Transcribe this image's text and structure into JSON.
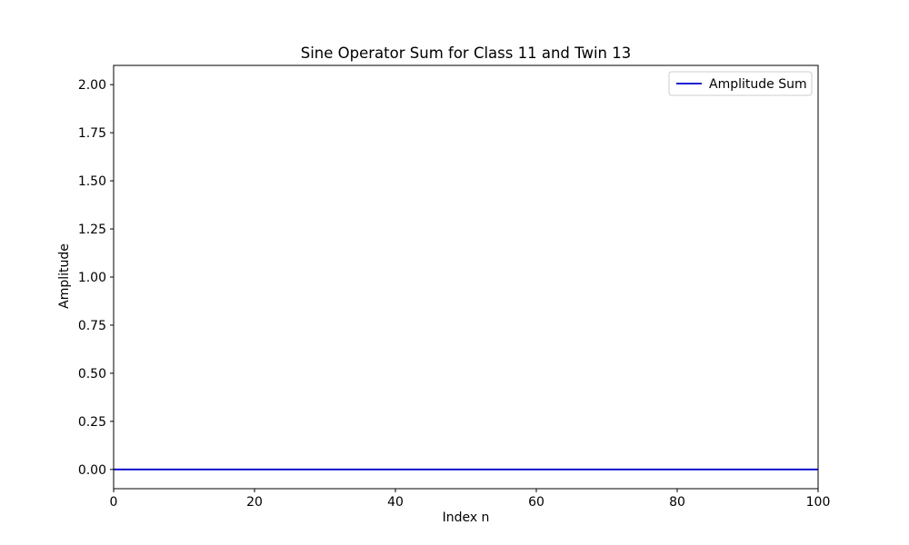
{
  "chart_data": {
    "type": "line",
    "title": "Sine Operator Sum for Class 11 and Twin 13",
    "xlabel": "Index n",
    "ylabel": "Amplitude",
    "xlim": [
      0,
      100
    ],
    "ylim": [
      -0.1,
      2.1
    ],
    "x_ticks": [
      0,
      20,
      40,
      60,
      80,
      100
    ],
    "x_tick_labels": [
      "0",
      "20",
      "40",
      "60",
      "80",
      "100"
    ],
    "y_ticks": [
      0,
      0.25,
      0.5,
      0.75,
      1.0,
      1.25,
      1.5,
      1.75,
      2.0
    ],
    "y_tick_labels": [
      "0.00",
      "0.25",
      "0.50",
      "0.75",
      "1.00",
      "1.25",
      "1.50",
      "1.75",
      "2.00"
    ],
    "grid": false,
    "legend_position": "top-right",
    "series": [
      {
        "name": "Amplitude Sum",
        "color": "#0000cd",
        "x": [
          0,
          100
        ],
        "y": [
          0,
          0
        ]
      }
    ]
  }
}
